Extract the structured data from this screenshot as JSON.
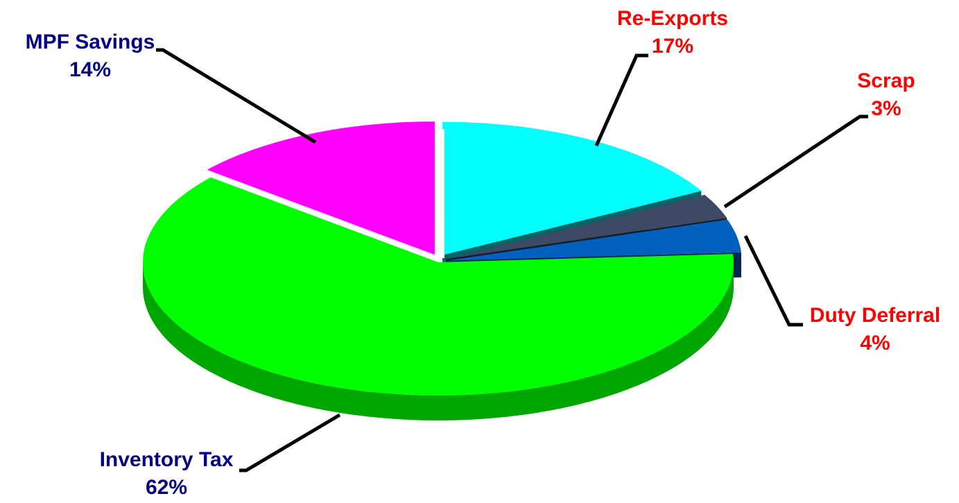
{
  "chart_data": {
    "type": "pie",
    "categories": [
      "Re-Exports",
      "Scrap",
      "Duty Deferral",
      "Inventory Tax",
      "MPF Savings"
    ],
    "values": [
      17,
      3,
      4,
      62,
      14
    ],
    "value_labels": [
      "17%",
      "3%",
      "4%",
      "62%",
      "14%"
    ],
    "colors": [
      "#00ffff",
      "#3c4a66",
      "#0060c0",
      "#00ff00",
      "#ff00ff"
    ],
    "label_colors": [
      "#ff0000",
      "#ff0000",
      "#ff0000",
      "#000080",
      "#000080"
    ]
  }
}
